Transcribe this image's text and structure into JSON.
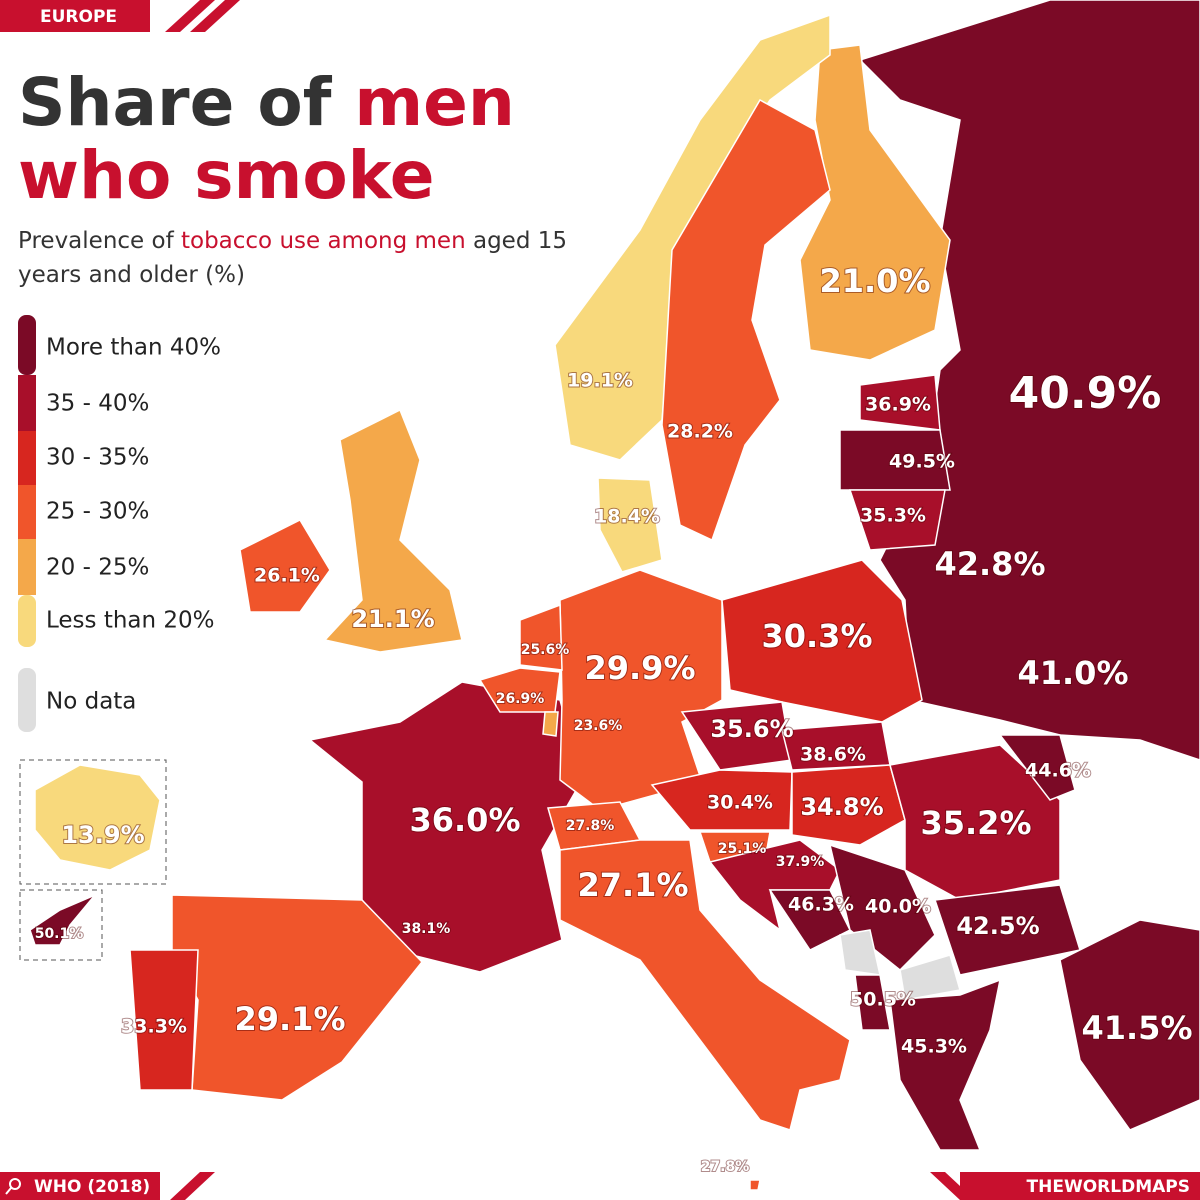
{
  "header": {
    "region": "EUROPE",
    "title_dark": "Share of",
    "title_red": "men",
    "title_line2": "who smoke",
    "subtitle_start": "Prevalence of",
    "subtitle_red": "tobacco use among men",
    "subtitle_end": "aged 15 years and older (%)"
  },
  "legend": [
    "More than 40%",
    "35 - 40%",
    "30 - 35%",
    "25 - 30%",
    "20 - 25%",
    "Less than 20%",
    "No data"
  ],
  "labels": [
    "21.0%",
    "19.1%",
    "28.2%",
    "40.9%",
    "36.9%",
    "49.5%",
    "18.4%",
    "35.3%",
    "42.8%",
    "26.1%",
    "21.1%",
    "30.3%",
    "25.6%",
    "29.9%",
    "41.0%",
    "26.9%",
    "23.6%",
    "35.6%",
    "38.6%",
    "44.6%",
    "30.4%",
    "34.8%",
    "36.0%",
    "35.2%",
    "27.8%",
    "13.9%",
    "25.1%",
    "37.9%",
    "27.1%",
    "46.3%",
    "40.0%",
    "50.1%",
    "38.1%",
    "42.5%",
    "50.5%",
    "41.5%",
    "33.3%",
    "29.1%",
    "45.3%",
    "27.8%"
  ],
  "footer": {
    "source": "WHO (2018)",
    "brand": "THEWORLDMAPS"
  }
}
